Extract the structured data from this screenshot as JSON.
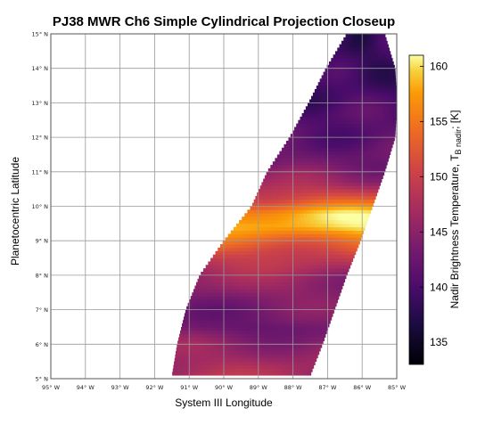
{
  "chart_data": {
    "type": "heatmap",
    "title": "PJ38 MWR Ch6 Simple Cylindrical Projection Closeup",
    "xlabel": "System III Longitude",
    "ylabel": "Planetocentric Latitude",
    "x_direction": "decreasing west longitude left to right",
    "xlim": [
      95,
      85
    ],
    "ylim": [
      5,
      15
    ],
    "x_ticks": [
      95,
      94,
      93,
      92,
      91,
      90,
      89,
      88,
      87,
      86,
      85
    ],
    "x_tick_labels": [
      "95° W",
      "94° W",
      "93° W",
      "92° W",
      "91° W",
      "90° W",
      "89° W",
      "88° W",
      "87° W",
      "86° W",
      "85° W"
    ],
    "y_ticks": [
      5,
      6,
      7,
      8,
      9,
      10,
      11,
      12,
      13,
      14,
      15
    ],
    "y_tick_labels": [
      "5° N",
      "6° N",
      "7° N",
      "8° N",
      "9° N",
      "10° N",
      "11° N",
      "12° N",
      "13° N",
      "14° N",
      "15° N"
    ],
    "grid": true,
    "colormap": "inferno",
    "colorbar": {
      "label_main": "Nadir Brightness Temperature, T",
      "label_sub": "B nadir",
      "label_end": "; [K]",
      "range": [
        133,
        161
      ],
      "ticks": [
        135,
        140,
        145,
        150,
        155,
        160
      ],
      "tick_labels": [
        "135",
        "140",
        "145",
        "150",
        "155",
        "160"
      ]
    },
    "swath_edges": [
      {
        "lat": 5.1,
        "lon_west": 91.5,
        "lon_east": 87.5
      },
      {
        "lat": 6.0,
        "lon_west": 91.35,
        "lon_east": 87.15
      },
      {
        "lat": 7.0,
        "lon_west": 91.1,
        "lon_east": 86.8
      },
      {
        "lat": 8.0,
        "lon_west": 90.7,
        "lon_east": 86.45
      },
      {
        "lat": 9.0,
        "lon_west": 90.0,
        "lon_east": 86.05
      },
      {
        "lat": 10.0,
        "lon_west": 89.2,
        "lon_east": 85.7
      },
      {
        "lat": 11.0,
        "lon_west": 88.75,
        "lon_east": 85.35
      },
      {
        "lat": 12.0,
        "lon_west": 88.1,
        "lon_east": 85.05
      },
      {
        "lat": 13.0,
        "lon_west": 87.55,
        "lon_east": 85.0
      },
      {
        "lat": 14.0,
        "lon_west": 87.05,
        "lon_east": 85.05
      },
      {
        "lat": 15.0,
        "lon_west": 86.45,
        "lon_east": 85.35
      }
    ],
    "temperature_profile": [
      {
        "lat": 5.1,
        "value": 147.5
      },
      {
        "lat": 6.0,
        "value": 145.5
      },
      {
        "lat": 6.5,
        "value": 142.5
      },
      {
        "lat": 7.0,
        "value": 143.5
      },
      {
        "lat": 7.5,
        "value": 145.0
      },
      {
        "lat": 8.0,
        "value": 146.0
      },
      {
        "lat": 8.5,
        "value": 149.5
      },
      {
        "lat": 9.0,
        "value": 154.0
      },
      {
        "lat": 9.4,
        "value": 158.5
      },
      {
        "lat": 9.8,
        "value": 158.0
      },
      {
        "lat": 10.2,
        "value": 152.0
      },
      {
        "lat": 10.7,
        "value": 146.5
      },
      {
        "lat": 11.2,
        "value": 143.0
      },
      {
        "lat": 12.0,
        "value": 141.5
      },
      {
        "lat": 13.0,
        "value": 140.0
      },
      {
        "lat": 14.0,
        "value": 139.0
      },
      {
        "lat": 15.0,
        "value": 138.5
      }
    ]
  }
}
